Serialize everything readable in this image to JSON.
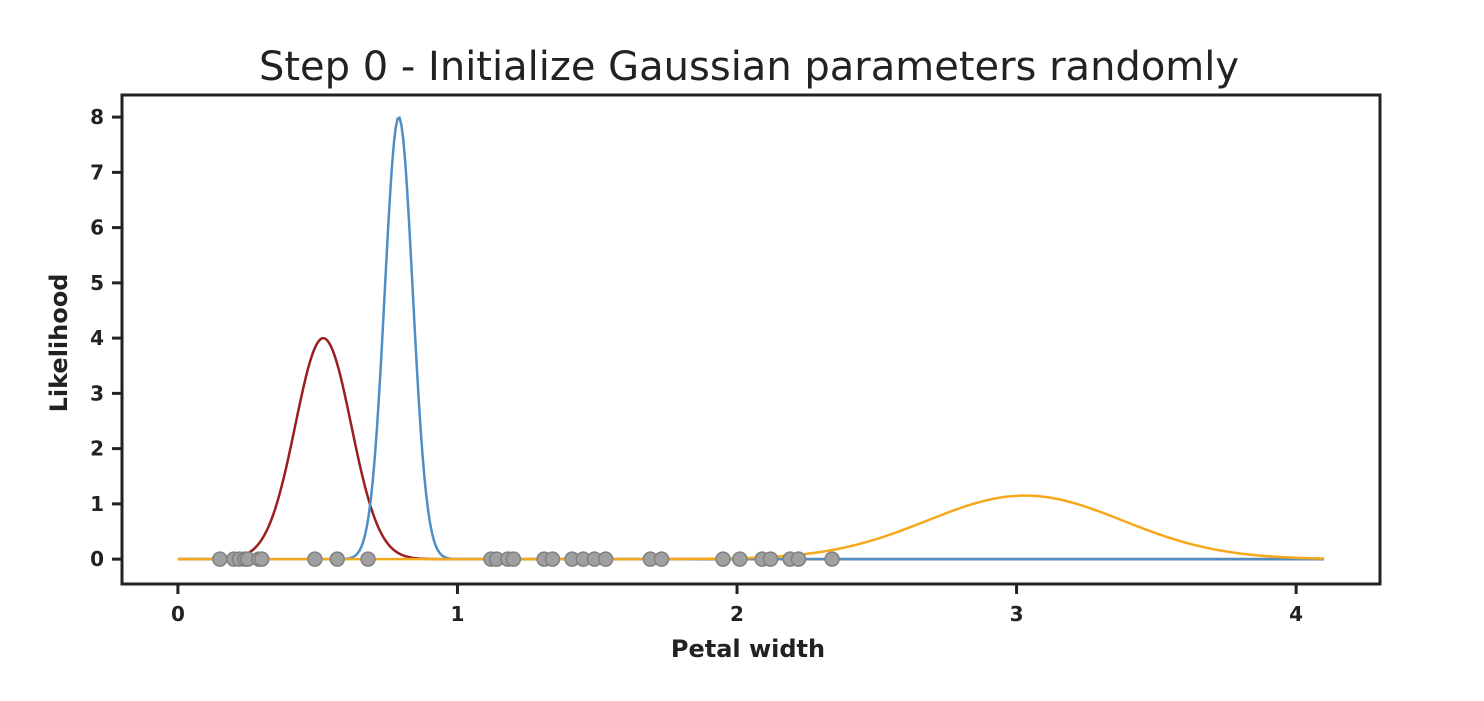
{
  "chart_data": {
    "type": "line",
    "title": "Step 0 - Initialize Gaussian parameters randomly",
    "xlabel": "Petal width",
    "ylabel": "Likelihood",
    "xlim": [
      -0.2,
      4.3
    ],
    "ylim": [
      -0.45,
      8.4
    ],
    "x_ticks": [
      0,
      1,
      2,
      3,
      4
    ],
    "y_ticks": [
      0,
      1,
      2,
      3,
      4,
      5,
      6,
      7,
      8
    ],
    "grid": false,
    "series": [
      {
        "type": "gaussian",
        "mean": 0.52,
        "std": 0.1,
        "peak": 4.0,
        "x_range": [
          0,
          4.1
        ],
        "color": "#9a1f1f"
      },
      {
        "type": "gaussian",
        "mean": 0.79,
        "std": 0.05,
        "peak": 8.0,
        "x_range": [
          0,
          4.1
        ],
        "color": "#4f8ec4"
      },
      {
        "type": "gaussian",
        "mean": 3.03,
        "std": 0.35,
        "peak": 1.15,
        "x_range": [
          0,
          4.1
        ],
        "color": "#f5a81c"
      }
    ],
    "points": {
      "y": 0,
      "color": "#a0a0a0",
      "x": [
        0.15,
        0.2,
        0.22,
        0.24,
        0.25,
        0.29,
        0.3,
        0.49,
        0.57,
        0.68,
        1.12,
        1.14,
        1.18,
        1.2,
        1.31,
        1.34,
        1.41,
        1.45,
        1.49,
        1.53,
        1.69,
        1.73,
        1.95,
        2.01,
        2.09,
        2.12,
        2.19,
        2.22,
        2.34
      ]
    }
  }
}
